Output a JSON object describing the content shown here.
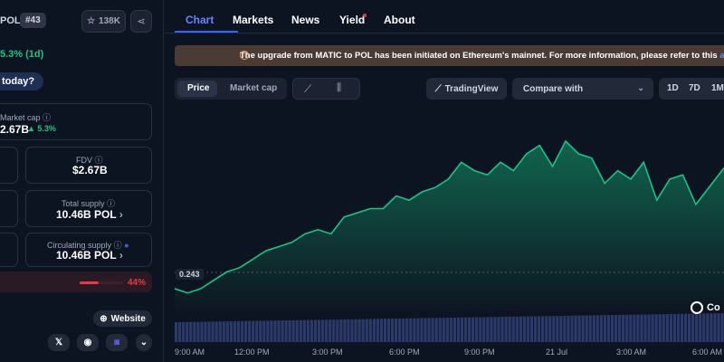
{
  "coin": {
    "ticker": "POL",
    "rank": "#43",
    "watchlist_count": "138K",
    "change_1d": "5.3% (1d)",
    "sentiment_prompt": "today?"
  },
  "stats": {
    "market_cap_label": "Market cap",
    "market_cap_value": "2.67B",
    "market_cap_change": "5.3%",
    "fdv_label": "FDV",
    "fdv_value": "$2.67B",
    "total_supply_label": "Total supply",
    "total_supply_value": "10.46B POL",
    "circulating_supply_label": "Circulating supply",
    "circulating_supply_value": "10.46B POL",
    "bar_percent_label": "44%",
    "bar_fill_fraction": 0.44
  },
  "links": {
    "website_label": "Website"
  },
  "nav": {
    "tabs": [
      "Chart",
      "Markets",
      "News",
      "Yield",
      "About"
    ],
    "active": "Chart"
  },
  "banner": {
    "text": "The upgrade from MATIC to POL has been initiated on Ethereum's mainnet. For more information, please refer to this",
    "link_text": "artic"
  },
  "controls": {
    "price_label": "Price",
    "market_cap_label": "Market cap",
    "tradingview_label": "TradingView",
    "compare_label": "Compare with",
    "ranges": [
      "1D",
      "7D",
      "1M"
    ]
  },
  "chart": {
    "start_price_label": "0.243",
    "x_ticks": [
      "9:00 AM",
      "12:00 PM",
      "3:00 PM",
      "6:00 PM",
      "9:00 PM",
      "21 Jul",
      "3:00 AM",
      "6:00 AM"
    ],
    "logo_text": "Co",
    "line_color": "#16c784",
    "accent_color": "#3861fb"
  },
  "chart_data": {
    "type": "area",
    "x": [
      "9:00 AM",
      "9:30 AM",
      "10:00 AM",
      "10:30 AM",
      "11:00 AM",
      "11:30 AM",
      "12:00 PM",
      "12:30 PM",
      "1:00 PM",
      "1:30 PM",
      "2:00 PM",
      "2:30 PM",
      "3:00 PM",
      "3:30 PM",
      "4:00 PM",
      "4:30 PM",
      "5:00 PM",
      "5:30 PM",
      "6:00 PM",
      "6:30 PM",
      "7:00 PM",
      "7:30 PM",
      "8:00 PM",
      "8:30 PM",
      "9:00 PM",
      "9:30 PM",
      "10:00 PM",
      "10:30 PM",
      "11:00 PM",
      "11:30 PM",
      "21 Jul",
      "12:30 AM",
      "1:00 AM",
      "1:30 AM",
      "2:00 AM",
      "2:30 AM",
      "3:00 AM",
      "3:30 AM",
      "4:00 AM",
      "4:30 AM",
      "5:00 AM",
      "5:30 AM",
      "6:00 AM",
      "6:30 AM"
    ],
    "values": [
      0.244,
      0.243,
      0.244,
      0.246,
      0.248,
      0.249,
      0.251,
      0.253,
      0.254,
      0.255,
      0.257,
      0.258,
      0.257,
      0.261,
      0.262,
      0.263,
      0.263,
      0.266,
      0.265,
      0.267,
      0.268,
      0.27,
      0.274,
      0.272,
      0.271,
      0.274,
      0.272,
      0.276,
      0.278,
      0.273,
      0.279,
      0.276,
      0.275,
      0.269,
      0.272,
      0.27,
      0.274,
      0.265,
      0.27,
      0.271,
      0.264,
      0.268,
      0.272,
      0.276
    ],
    "ylim": [
      0.238,
      0.282
    ]
  }
}
